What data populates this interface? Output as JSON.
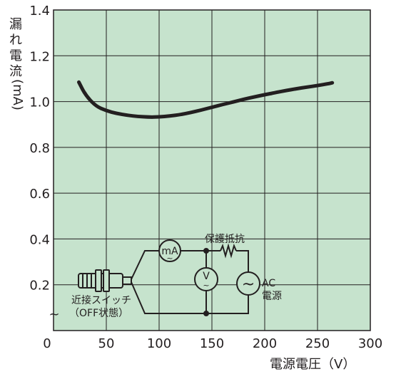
{
  "chart_data": {
    "type": "line",
    "xlabel": "電源電圧（V）",
    "ylabel": "漏れ電流（mA）",
    "ylabel_chars": [
      "漏",
      "れ",
      "電",
      "流",
      "(mA)"
    ],
    "xlim": [
      0,
      300
    ],
    "ylim": [
      0,
      1.4
    ],
    "x_ticks": [
      "0",
      "50",
      "100",
      "150",
      "200",
      "250",
      "300"
    ],
    "y_ticks": [
      "0.2",
      "0.4",
      "0.6",
      "0.8",
      "1.0",
      "1.2",
      "1.4"
    ],
    "y_zero_label": "~",
    "grid": true,
    "series": [
      {
        "x": [
          24,
          30,
          40,
          50,
          60,
          70,
          80,
          90,
          100,
          110,
          120,
          130,
          140,
          150,
          160,
          170,
          180,
          190,
          200,
          210,
          220,
          230,
          240,
          250,
          260,
          264
        ],
        "y": [
          1.085,
          1.03,
          0.98,
          0.96,
          0.948,
          0.94,
          0.935,
          0.932,
          0.933,
          0.937,
          0.943,
          0.952,
          0.963,
          0.975,
          0.987,
          0.998,
          1.01,
          1.02,
          1.03,
          1.039,
          1.048,
          1.056,
          1.063,
          1.07,
          1.078,
          1.082
        ]
      }
    ]
  },
  "inset": {
    "meter_ma": "mA",
    "meter_v": "V",
    "resistor_label": "保護抵抗",
    "source_label_line1": "AC",
    "source_label_line2": "電源",
    "switch_label_line1": "近接スイッチ",
    "switch_label_line2": "（OFF状態）",
    "source_symbol": "~"
  },
  "colors": {
    "plot_bg": "#c6e3cd",
    "curve": "#231f20",
    "grid": "#231f20"
  }
}
